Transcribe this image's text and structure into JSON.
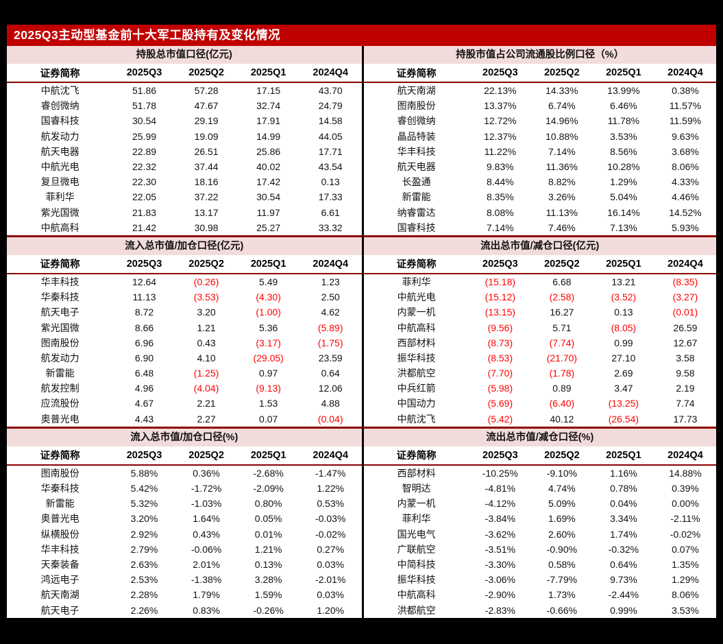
{
  "page": {
    "title": "2025Q3主动型基金前十大军工股持有及变化情况"
  },
  "colors": {
    "title_bar": "#c00000",
    "section_header_bg": "#f2dcdb",
    "divider_red": "#8b0000",
    "divider_black": "#000000",
    "negative_value": "#ff0000",
    "title_text": "#ffffff"
  },
  "columns": [
    "证券简称",
    "2025Q3",
    "2025Q2",
    "2025Q1",
    "2024Q4"
  ],
  "chart_data": [
    {
      "type": "table",
      "title": "持股总市值口径(亿元)",
      "columns": [
        "证券简称",
        "2025Q3",
        "2025Q2",
        "2025Q1",
        "2024Q4"
      ],
      "rows": [
        {
          "name": "中航沈飞",
          "values": [
            "51.86",
            "57.28",
            "17.15",
            "43.70"
          ]
        },
        {
          "name": "睿创微纳",
          "values": [
            "51.78",
            "47.67",
            "32.74",
            "24.79"
          ]
        },
        {
          "name": "国睿科技",
          "values": [
            "30.54",
            "29.19",
            "17.91",
            "14.58"
          ]
        },
        {
          "name": "航发动力",
          "values": [
            "25.99",
            "19.09",
            "14.99",
            "44.05"
          ]
        },
        {
          "name": "航天电器",
          "values": [
            "22.89",
            "26.51",
            "25.86",
            "17.71"
          ]
        },
        {
          "name": "中航光电",
          "values": [
            "22.32",
            "37.44",
            "40.02",
            "43.54"
          ]
        },
        {
          "name": "复旦微电",
          "values": [
            "22.30",
            "18.16",
            "17.42",
            "0.13"
          ]
        },
        {
          "name": "菲利华",
          "values": [
            "22.05",
            "37.22",
            "30.54",
            "17.33"
          ]
        },
        {
          "name": "紫光国微",
          "values": [
            "21.83",
            "13.17",
            "11.97",
            "6.61"
          ]
        },
        {
          "name": "中航高科",
          "values": [
            "21.42",
            "30.98",
            "25.27",
            "33.32"
          ]
        }
      ]
    },
    {
      "type": "table",
      "title": "持股市值占公司流通股比例口径（%）",
      "columns": [
        "证券简称",
        "2025Q3",
        "2025Q2",
        "2025Q1",
        "2024Q4"
      ],
      "rows": [
        {
          "name": "航天南湖",
          "values": [
            "22.13%",
            "14.33%",
            "13.99%",
            "0.38%"
          ]
        },
        {
          "name": "图南股份",
          "values": [
            "13.37%",
            "6.74%",
            "6.46%",
            "11.57%"
          ]
        },
        {
          "name": "睿创微纳",
          "values": [
            "12.72%",
            "14.96%",
            "11.78%",
            "11.59%"
          ]
        },
        {
          "name": "晶品特装",
          "values": [
            "12.37%",
            "10.88%",
            "3.53%",
            "9.63%"
          ]
        },
        {
          "name": "华丰科技",
          "values": [
            "11.22%",
            "7.14%",
            "8.56%",
            "3.68%"
          ]
        },
        {
          "name": "航天电器",
          "values": [
            "9.83%",
            "11.36%",
            "10.28%",
            "8.06%"
          ]
        },
        {
          "name": "长盈通",
          "values": [
            "8.44%",
            "8.82%",
            "1.29%",
            "4.33%"
          ]
        },
        {
          "name": "新雷能",
          "values": [
            "8.35%",
            "3.26%",
            "5.04%",
            "4.46%"
          ]
        },
        {
          "name": "纳睿雷达",
          "values": [
            "8.08%",
            "11.13%",
            "16.14%",
            "14.52%"
          ]
        },
        {
          "name": "国睿科技",
          "values": [
            "7.14%",
            "7.46%",
            "7.13%",
            "5.93%"
          ]
        }
      ]
    },
    {
      "type": "table",
      "title": "流入总市值/加仓口径(亿元)",
      "columns": [
        "证券简称",
        "2025Q3",
        "2025Q2",
        "2025Q1",
        "2024Q4"
      ],
      "rows": [
        {
          "name": "华丰科技",
          "values": [
            "12.64",
            "(0.26)",
            "5.49",
            "1.23"
          ]
        },
        {
          "name": "华秦科技",
          "values": [
            "11.13",
            "(3.53)",
            "(4.30)",
            "2.50"
          ]
        },
        {
          "name": "航天电子",
          "values": [
            "8.72",
            "3.20",
            "(1.00)",
            "4.62"
          ]
        },
        {
          "name": "紫光国微",
          "values": [
            "8.66",
            "1.21",
            "5.36",
            "(5.89)"
          ]
        },
        {
          "name": "图南股份",
          "values": [
            "6.96",
            "0.43",
            "(3.17)",
            "(1.75)"
          ]
        },
        {
          "name": "航发动力",
          "values": [
            "6.90",
            "4.10",
            "(29.05)",
            "23.59"
          ]
        },
        {
          "name": "新雷能",
          "values": [
            "6.48",
            "(1.25)",
            "0.97",
            "0.64"
          ]
        },
        {
          "name": "航发控制",
          "values": [
            "4.96",
            "(4.04)",
            "(9.13)",
            "12.06"
          ]
        },
        {
          "name": "应流股份",
          "values": [
            "4.67",
            "2.21",
            "1.53",
            "4.88"
          ]
        },
        {
          "name": "奥普光电",
          "values": [
            "4.43",
            "2.27",
            "0.07",
            "(0.04)"
          ]
        }
      ]
    },
    {
      "type": "table",
      "title": "流出总市值/减仓口径(亿元)",
      "columns": [
        "证券简称",
        "2025Q3",
        "2025Q2",
        "2025Q1",
        "2024Q4"
      ],
      "rows": [
        {
          "name": "菲利华",
          "values": [
            "(15.18)",
            "6.68",
            "13.21",
            "(8.35)"
          ]
        },
        {
          "name": "中航光电",
          "values": [
            "(15.12)",
            "(2.58)",
            "(3.52)",
            "(3.27)"
          ]
        },
        {
          "name": "内蒙一机",
          "values": [
            "(13.15)",
            "16.27",
            "0.13",
            "(0.01)"
          ]
        },
        {
          "name": "中航高科",
          "values": [
            "(9.56)",
            "5.71",
            "(8.05)",
            "26.59"
          ]
        },
        {
          "name": "西部材料",
          "values": [
            "(8.73)",
            "(7.74)",
            "0.99",
            "12.67"
          ]
        },
        {
          "name": "振华科技",
          "values": [
            "(8.53)",
            "(21.70)",
            "27.10",
            "3.58"
          ]
        },
        {
          "name": "洪都航空",
          "values": [
            "(7.70)",
            "(1.78)",
            "2.69",
            "9.58"
          ]
        },
        {
          "name": "中兵红箭",
          "values": [
            "(5.98)",
            "0.89",
            "3.47",
            "2.19"
          ]
        },
        {
          "name": "中国动力",
          "values": [
            "(5.69)",
            "(6.40)",
            "(13.25)",
            "7.74"
          ]
        },
        {
          "name": "中航沈飞",
          "values": [
            "(5.42)",
            "40.12",
            "(26.54)",
            "17.73"
          ]
        }
      ]
    },
    {
      "type": "table",
      "title": "流入总市值/加仓口径(%)",
      "columns": [
        "证券简称",
        "2025Q3",
        "2025Q2",
        "2025Q1",
        "2024Q4"
      ],
      "rows": [
        {
          "name": "图南股份",
          "values": [
            "5.88%",
            "0.36%",
            "-2.68%",
            "-1.47%"
          ]
        },
        {
          "name": "华秦科技",
          "values": [
            "5.42%",
            "-1.72%",
            "-2.09%",
            "1.22%"
          ]
        },
        {
          "name": "新雷能",
          "values": [
            "5.32%",
            "-1.03%",
            "0.80%",
            "0.53%"
          ]
        },
        {
          "name": "奥普光电",
          "values": [
            "3.20%",
            "1.64%",
            "0.05%",
            "-0.03%"
          ]
        },
        {
          "name": "纵横股份",
          "values": [
            "2.92%",
            "0.43%",
            "0.01%",
            "-0.02%"
          ]
        },
        {
          "name": "华丰科技",
          "values": [
            "2.79%",
            "-0.06%",
            "1.21%",
            "0.27%"
          ]
        },
        {
          "name": "天秦装备",
          "values": [
            "2.63%",
            "2.01%",
            "0.13%",
            "0.03%"
          ]
        },
        {
          "name": "鸿远电子",
          "values": [
            "2.53%",
            "-1.38%",
            "3.28%",
            "-2.01%"
          ]
        },
        {
          "name": "航天南湖",
          "values": [
            "2.28%",
            "1.79%",
            "1.59%",
            "0.03%"
          ]
        },
        {
          "name": "航天电子",
          "values": [
            "2.26%",
            "0.83%",
            "-0.26%",
            "1.20%"
          ]
        }
      ]
    },
    {
      "type": "table",
      "title": "流出总市值/减仓口径(%)",
      "columns": [
        "证券简称",
        "2025Q3",
        "2025Q2",
        "2025Q1",
        "2024Q4"
      ],
      "rows": [
        {
          "name": "西部材料",
          "values": [
            "-10.25%",
            "-9.10%",
            "1.16%",
            "14.88%"
          ]
        },
        {
          "name": "智明达",
          "values": [
            "-4.81%",
            "4.74%",
            "0.78%",
            "0.39%"
          ]
        },
        {
          "name": "内蒙一机",
          "values": [
            "-4.12%",
            "5.09%",
            "0.04%",
            "0.00%"
          ]
        },
        {
          "name": "菲利华",
          "values": [
            "-3.84%",
            "1.69%",
            "3.34%",
            "-2.11%"
          ]
        },
        {
          "name": "国光电气",
          "values": [
            "-3.62%",
            "2.60%",
            "1.74%",
            "-0.02%"
          ]
        },
        {
          "name": "广联航空",
          "values": [
            "-3.51%",
            "-0.90%",
            "-0.32%",
            "0.07%"
          ]
        },
        {
          "name": "中简科技",
          "values": [
            "-3.30%",
            "0.58%",
            "0.64%",
            "1.35%"
          ]
        },
        {
          "name": "振华科技",
          "values": [
            "-3.06%",
            "-7.79%",
            "9.73%",
            "1.29%"
          ]
        },
        {
          "name": "中航高科",
          "values": [
            "-2.90%",
            "1.73%",
            "-2.44%",
            "8.06%"
          ]
        },
        {
          "name": "洪都航空",
          "values": [
            "-2.83%",
            "-0.66%",
            "0.99%",
            "3.53%"
          ]
        }
      ]
    }
  ]
}
